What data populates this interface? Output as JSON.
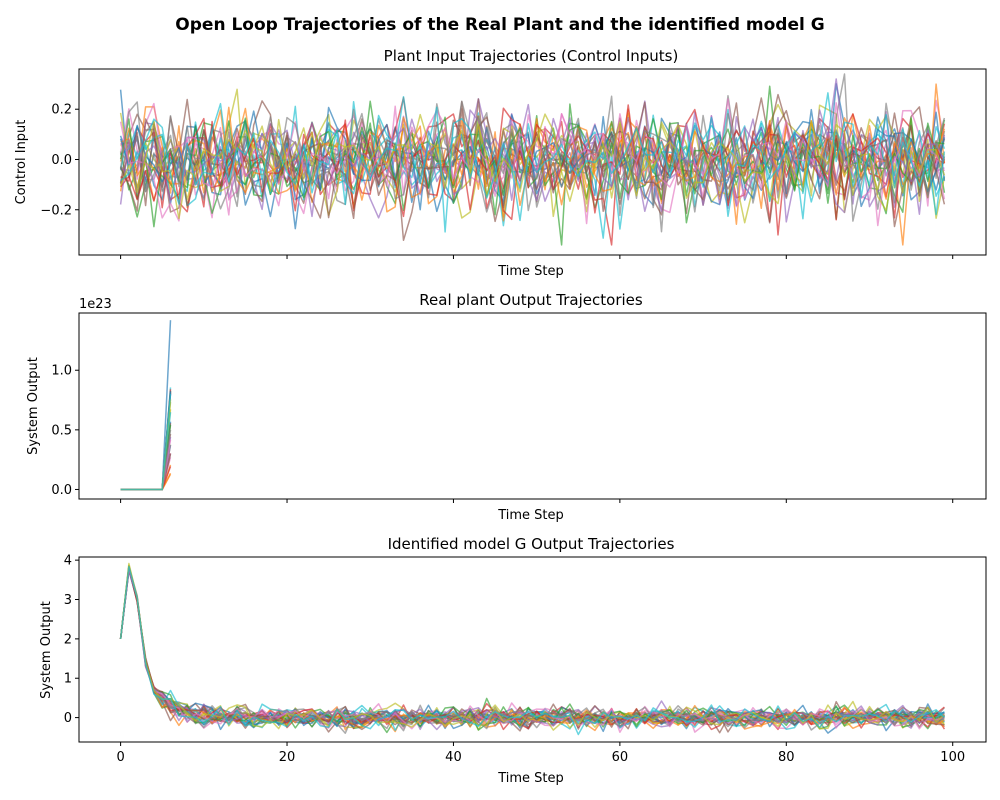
{
  "figure_title": "Open Loop Trajectories of the Real Plant and the identified model G",
  "chart_data": [
    {
      "type": "line",
      "title": "Plant Input Trajectories (Control Inputs)",
      "xlabel": "Time Step",
      "ylabel": "Control Input",
      "xlim": [
        -5,
        104
      ],
      "ylim": [
        -0.38,
        0.36
      ],
      "xticks": [
        0,
        20,
        40,
        60,
        80,
        100
      ],
      "xticklabels_visible": false,
      "yticks": [
        -0.2,
        0.0,
        0.2
      ],
      "ytick_labels": [
        "−0.2",
        "0.0",
        "0.2"
      ],
      "offset_label": "",
      "grid": false,
      "legend": "none",
      "num_series": 30,
      "signal": {
        "kind": "white_noise",
        "mean": 0.0,
        "std": 0.1,
        "x_start": 0,
        "x_end": 99,
        "step": 1
      }
    },
    {
      "type": "line",
      "title": "Real plant Output Trajectories",
      "xlabel": "Time Step",
      "ylabel": "System Output",
      "xlim": [
        -5,
        104
      ],
      "ylim": [
        -0.08,
        1.48
      ],
      "xticks": [
        0,
        20,
        40,
        60,
        80,
        100
      ],
      "xticklabels_visible": false,
      "yticks": [
        0.0,
        0.5,
        1.0
      ],
      "ytick_labels": [
        "0.0",
        "0.5",
        "1.0"
      ],
      "offset_label": "1e23",
      "grid": false,
      "legend": "none",
      "num_series": 30,
      "signal": {
        "kind": "divergent",
        "x": [
          0,
          1,
          2,
          3,
          4,
          5,
          6
        ],
        "flat_value": 0.0,
        "final_values_range": [
          0.12,
          1.42
        ],
        "note_units": "1e23"
      }
    },
    {
      "type": "line",
      "title": "Identified model G Output Trajectories",
      "xlabel": "Time Step",
      "ylabel": "System Output",
      "xlim": [
        -5,
        104
      ],
      "ylim": [
        -0.62,
        4.08
      ],
      "xticks": [
        0,
        20,
        40,
        60,
        80,
        100
      ],
      "xtick_labels": [
        "0",
        "20",
        "40",
        "60",
        "80",
        "100"
      ],
      "xticklabels_visible": true,
      "yticks": [
        0,
        1,
        2,
        3,
        4
      ],
      "ytick_labels": [
        "0",
        "1",
        "2",
        "3",
        "4"
      ],
      "offset_label": "",
      "grid": false,
      "legend": "none",
      "num_series": 30,
      "signal": {
        "kind": "decay_with_noise",
        "x_start": 0,
        "x_end": 99,
        "initial": [
          2.0,
          3.8,
          3.0,
          1.4,
          0.7
        ],
        "tail_mean": 0.0,
        "tail_std": 0.13
      }
    }
  ],
  "colors": [
    "#1f77b4",
    "#ff7f0e",
    "#2ca02c",
    "#d62728",
    "#9467bd",
    "#8c564b",
    "#e377c2",
    "#7f7f7f",
    "#bcbd22",
    "#17becf"
  ]
}
